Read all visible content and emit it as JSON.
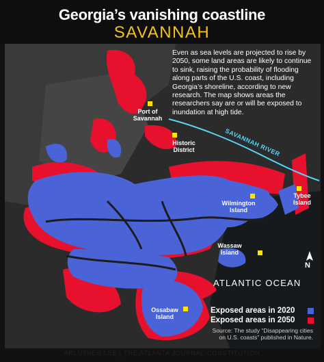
{
  "title": "Georgia’s vanishing coastline",
  "subtitle": "SAVANNAH",
  "intro": "Even as sea levels are projected to rise by 2050, some land areas are likely to continue to sink, raising the probability of flooding along parts of the U.S. coast, including Georgia’s shoreline, according to new research. The map shows areas the researchers say are or will be exposed to inundation at high tide.",
  "places": {
    "port": [
      "Port of",
      "Savannah"
    ],
    "historic": [
      "Historic",
      "District"
    ],
    "wilmington": [
      "Wilmington",
      "Island"
    ],
    "tybee": [
      "Tybee",
      "Island"
    ],
    "wassaw": [
      "Wassaw",
      "Island"
    ],
    "ossabaw": [
      "Ossabaw",
      "Island"
    ]
  },
  "river_label": "SAVANNAH RIVER",
  "ocean_label": "ATLANTIC OCEAN",
  "north_label": "N",
  "legend": {
    "items": [
      {
        "label": "Exposed areas in 2020",
        "color": "#4a64d8"
      },
      {
        "label": "Exposed areas in 2050",
        "color": "#e8112d"
      }
    ]
  },
  "source": "Source: The study “Disappearing cities on U.S. coasts” published in Nature.",
  "credit": "ARLUTHER LEE | THE ATLANTA JOURNAL-CONSTITUTION",
  "colors": {
    "background": "#111111",
    "title": "#ffffff",
    "subtitle": "#f2c318",
    "marker": "#ffe600",
    "river_label": "#5ad6f5",
    "exposed_2020": "#4a64d8",
    "exposed_2050": "#e8112d"
  }
}
